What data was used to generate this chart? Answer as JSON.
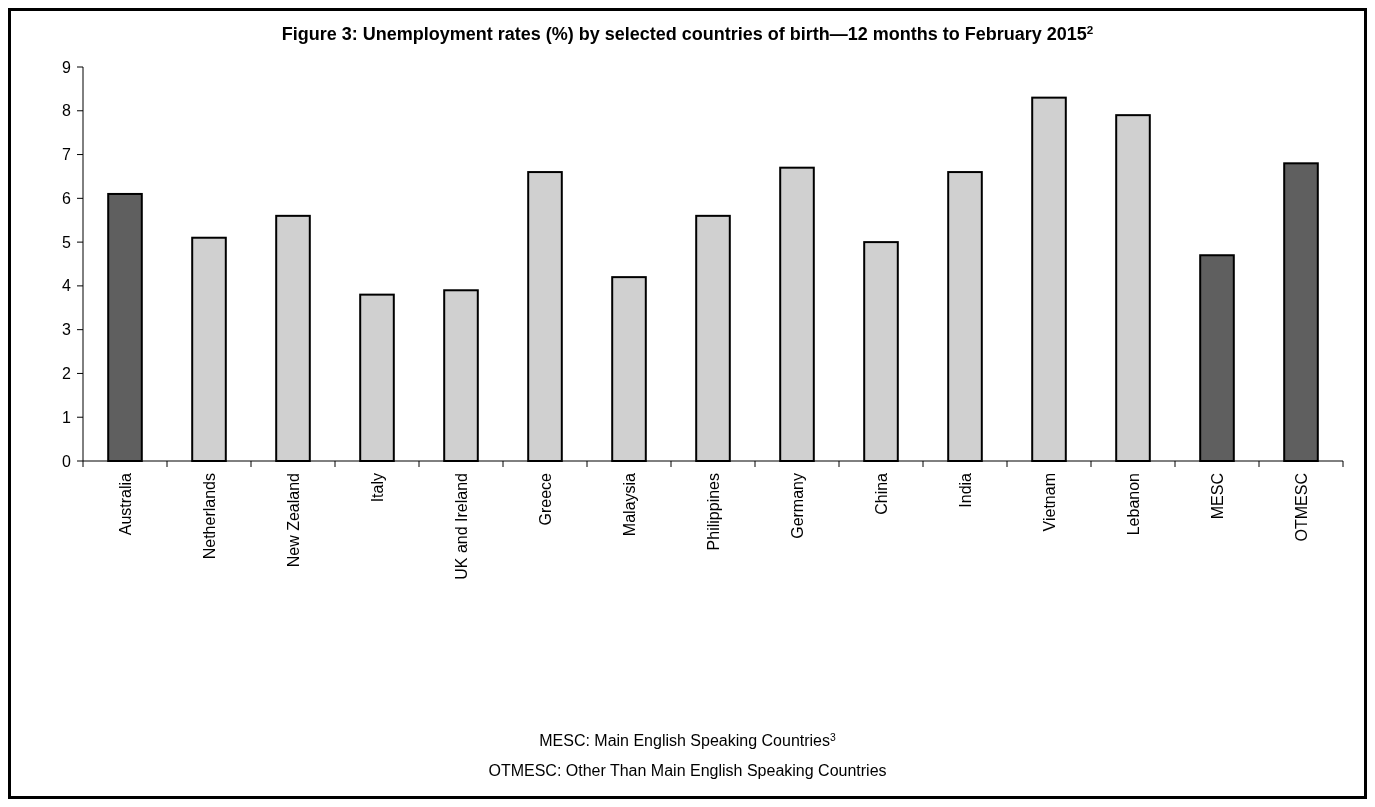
{
  "chart_data": {
    "type": "bar",
    "title": "Figure 3: Unemployment rates (%) by selected countries of birth—12 months to February 2015$^{2}$",
    "categories": [
      "Australia",
      "Netherlands",
      "New Zealand",
      "Italy",
      "UK and Ireland",
      "Greece",
      "Malaysia",
      "Philippines",
      "Germany",
      "China",
      "India",
      "Vietnam",
      "Lebanon",
      "MESC",
      "OTMESC"
    ],
    "values": [
      6.1,
      5.1,
      5.6,
      3.8,
      3.9,
      6.6,
      4.2,
      5.6,
      6.7,
      5.0,
      6.6,
      8.3,
      7.9,
      4.7,
      6.8
    ],
    "colors": [
      "#5f5f5f",
      "#d0d0d0",
      "#d0d0d0",
      "#d0d0d0",
      "#d0d0d0",
      "#d0d0d0",
      "#d0d0d0",
      "#d0d0d0",
      "#d0d0d0",
      "#d0d0d0",
      "#d0d0d0",
      "#d0d0d0",
      "#d0d0d0",
      "#5f5f5f",
      "#5f5f5f"
    ],
    "ylim": [
      0,
      9
    ],
    "yticks": [
      0,
      1,
      2,
      3,
      4,
      5,
      6,
      7,
      8,
      9
    ],
    "grid": false,
    "annotations": [
      "MESC: Main English Speaking Countries$^{3}$",
      "OTMESC: Other Than Main English Speaking Countries"
    ]
  }
}
